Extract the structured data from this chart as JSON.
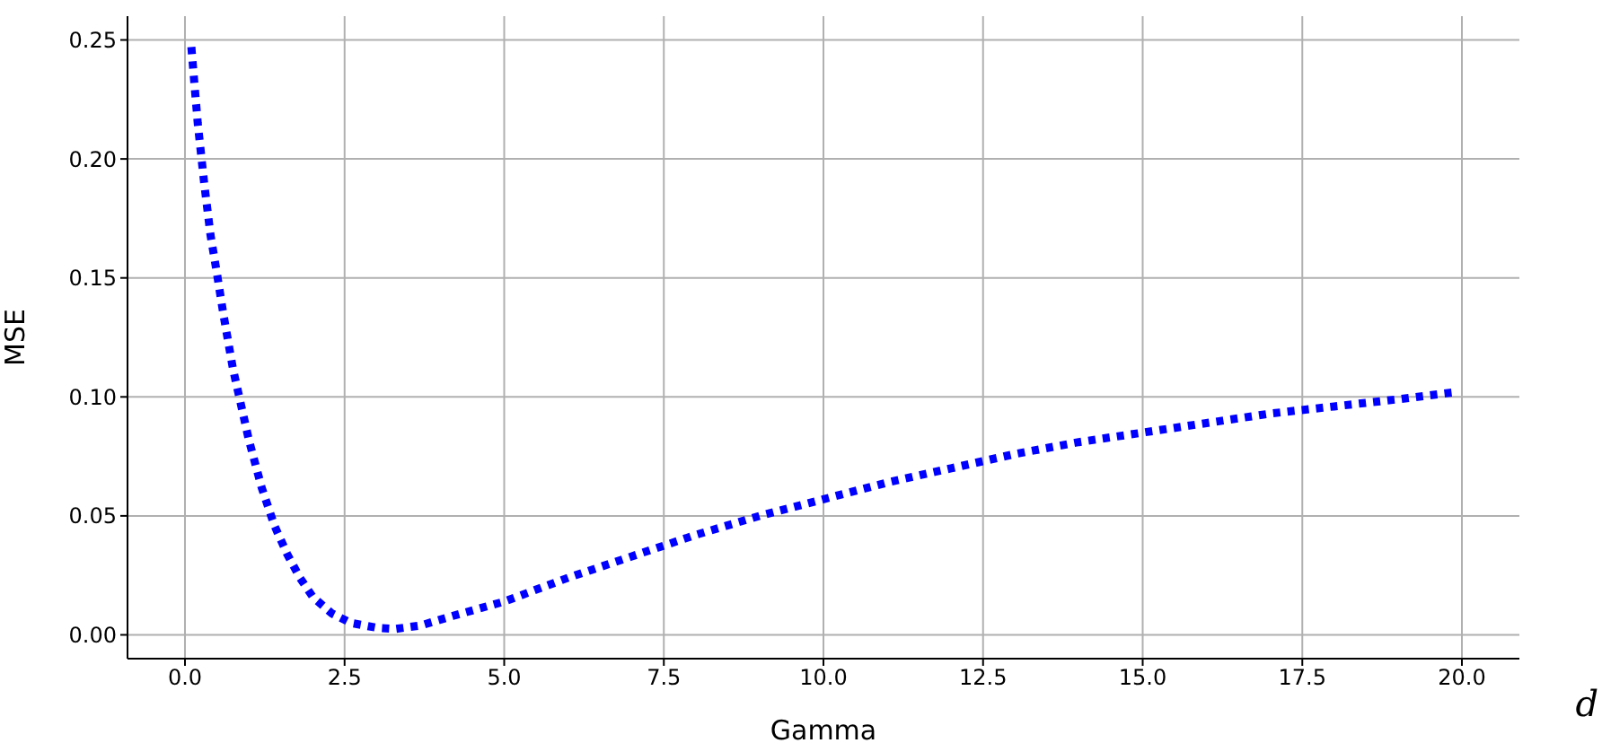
{
  "chart_data": {
    "type": "line",
    "xlabel": "Gamma",
    "ylabel": "MSE",
    "annotations": [
      "d"
    ],
    "x": [
      0.1,
      0.2,
      0.3,
      0.4,
      0.5,
      0.6,
      0.75,
      0.9,
      1.0,
      1.2,
      1.4,
      1.6,
      1.8,
      2.0,
      2.3,
      2.6,
      3.0,
      3.3,
      3.7,
      4.2,
      5.0,
      6.0,
      7.0,
      8.0,
      9.0,
      10.0,
      11.0,
      12.0,
      13.0,
      14.0,
      15.0,
      16.0,
      17.0,
      18.0,
      19.0,
      19.9
    ],
    "series": [
      {
        "color": "#0000ff",
        "values": [
          0.247,
          0.215,
          0.19,
          0.168,
          0.152,
          0.135,
          0.112,
          0.094,
          0.082,
          0.062,
          0.046,
          0.034,
          0.024,
          0.016,
          0.009,
          0.005,
          0.003,
          0.0025,
          0.004,
          0.008,
          0.014,
          0.024,
          0.033,
          0.042,
          0.05,
          0.057,
          0.064,
          0.07,
          0.076,
          0.081,
          0.085,
          0.089,
          0.093,
          0.096,
          0.099,
          0.102
        ]
      }
    ],
    "xlim": [
      -0.9,
      20.9
    ],
    "ylim": [
      -0.01,
      0.26
    ],
    "xticks": [
      {
        "value": 0,
        "label": "0.0"
      },
      {
        "value": 2.5,
        "label": "2.5"
      },
      {
        "value": 5,
        "label": "5.0"
      },
      {
        "value": 7.5,
        "label": "7.5"
      },
      {
        "value": 10,
        "label": "10.0"
      },
      {
        "value": 12.5,
        "label": "12.5"
      },
      {
        "value": 15,
        "label": "15.0"
      },
      {
        "value": 17.5,
        "label": "17.5"
      },
      {
        "value": 20,
        "label": "20.0"
      }
    ],
    "yticks": [
      {
        "value": 0,
        "label": "0.00"
      },
      {
        "value": 0.05,
        "label": "0.05"
      },
      {
        "value": 0.1,
        "label": "0.10"
      },
      {
        "value": 0.15,
        "label": "0.15"
      },
      {
        "value": 0.2,
        "label": "0.20"
      },
      {
        "value": 0.25,
        "label": "0.25"
      }
    ],
    "grid": true,
    "line_style": "dotted",
    "marker": "none"
  }
}
